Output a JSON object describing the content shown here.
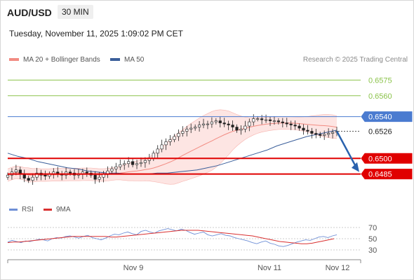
{
  "header": {
    "symbol": "AUD/USD",
    "timeframe": "30 MIN",
    "datetime": "Tuesday, November 11, 2025 1:09:02 PM CET"
  },
  "legend": {
    "bollinger_label": "MA 20 + Bollinger Bands",
    "ma50_label": "MA 50",
    "credit": "Research © 2025 Trading Central"
  },
  "rsi_legend": {
    "rsi_label": "RSI",
    "ma_label": "9MA"
  },
  "colors": {
    "bollinger": "#f28b82",
    "ma50": "#3a5e9a",
    "up_candle": "#ffffff",
    "down_candle": "#222222",
    "resistance_light": "#8bc34a",
    "pivot_blue": "#4a7bd0",
    "support_red": "#e00000",
    "arrow": "#2a62ad",
    "rsi_line": "#6e8fd6",
    "rsi_ma": "#d93030"
  },
  "chart_data": {
    "type": "candlestick",
    "title": "AUD/USD",
    "timeframe": "30 MIN",
    "ylim": [
      0.6462,
      0.6588
    ],
    "x_ticks": [
      "Nov 9",
      "Nov 11",
      "Nov 12"
    ],
    "levels": [
      {
        "value": 0.6575,
        "label": "0.6575",
        "style": "resistance"
      },
      {
        "value": 0.656,
        "label": "0.6560",
        "style": "resistance"
      },
      {
        "value": 0.654,
        "label": "0.6540",
        "style": "pivot"
      },
      {
        "value": 0.6526,
        "label": "0.6526",
        "style": "current"
      },
      {
        "value": 0.65,
        "label": "0.6500",
        "style": "support"
      },
      {
        "value": 0.6485,
        "label": "0.6485",
        "style": "support"
      }
    ],
    "close_series": [
      0.6484,
      0.6487,
      0.6489,
      0.6485,
      0.6481,
      0.6479,
      0.6482,
      0.6486,
      0.6484,
      0.6483,
      0.6485,
      0.6487,
      0.6485,
      0.6484,
      0.6487,
      0.6486,
      0.6484,
      0.6485,
      0.6487,
      0.6486,
      0.6484,
      0.648,
      0.6482,
      0.6485,
      0.6488,
      0.649,
      0.6492,
      0.6494,
      0.6495,
      0.6497,
      0.6494,
      0.6495,
      0.6496,
      0.6498,
      0.65,
      0.6505,
      0.6509,
      0.6513,
      0.6516,
      0.6518,
      0.6521,
      0.6524,
      0.6526,
      0.6528,
      0.6529,
      0.653,
      0.6532,
      0.6533,
      0.6533,
      0.6535,
      0.6536,
      0.6534,
      0.6533,
      0.6532,
      0.653,
      0.6527,
      0.6528,
      0.6531,
      0.6535,
      0.6538,
      0.6538,
      0.6537,
      0.6537,
      0.6536,
      0.6536,
      0.6535,
      0.6534,
      0.6533,
      0.6532,
      0.6531,
      0.6529,
      0.6527,
      0.6526,
      0.6524,
      0.6523,
      0.6522,
      0.6523,
      0.6524,
      0.6525,
      0.6526
    ],
    "ma50_series": [
      0.6505,
      0.6502,
      0.65,
      0.6497,
      0.6495,
      0.6493,
      0.6491,
      0.649,
      0.6488,
      0.6487,
      0.6486,
      0.6486,
      0.6485,
      0.6485,
      0.6485,
      0.6486,
      0.6486,
      0.6487,
      0.6488,
      0.6489,
      0.6491,
      0.6493,
      0.6496,
      0.6499,
      0.6502,
      0.6505,
      0.6508,
      0.6512,
      0.6515,
      0.6518,
      0.6521,
      0.6523,
      0.6525,
      0.6527
    ],
    "rsi": {
      "ylim": [
        20,
        80
      ],
      "ticks": [
        70,
        50,
        30
      ],
      "rsi_series": [
        44,
        47,
        45,
        43,
        46,
        45,
        47,
        49,
        48,
        46,
        50,
        52,
        51,
        54,
        55,
        53,
        51,
        54,
        56,
        52,
        50,
        48,
        51,
        55,
        58,
        57,
        60,
        62,
        59,
        57,
        63,
        65,
        62,
        60,
        64,
        66,
        68,
        66,
        64,
        67,
        65,
        61,
        58,
        60,
        62,
        57,
        55,
        57,
        59,
        56,
        55,
        52,
        50,
        48,
        46,
        43,
        41,
        44,
        46,
        42,
        40,
        37,
        36,
        38,
        41,
        44,
        46,
        48,
        47,
        50,
        53,
        54,
        52,
        55,
        57
      ],
      "ma_series": [
        43,
        44,
        44,
        45,
        46,
        47,
        48,
        49,
        50,
        51,
        52,
        53,
        54,
        54,
        54,
        54,
        54,
        54,
        54,
        53,
        53,
        54,
        55,
        56,
        57,
        58,
        59,
        60,
        61,
        62,
        63,
        64,
        65,
        65,
        65,
        65,
        64,
        63,
        62,
        61,
        60,
        59,
        58,
        57,
        56,
        55,
        53,
        51,
        49,
        47,
        45,
        44,
        43,
        42,
        41,
        41,
        42,
        44,
        46,
        48,
        50
      ]
    }
  }
}
